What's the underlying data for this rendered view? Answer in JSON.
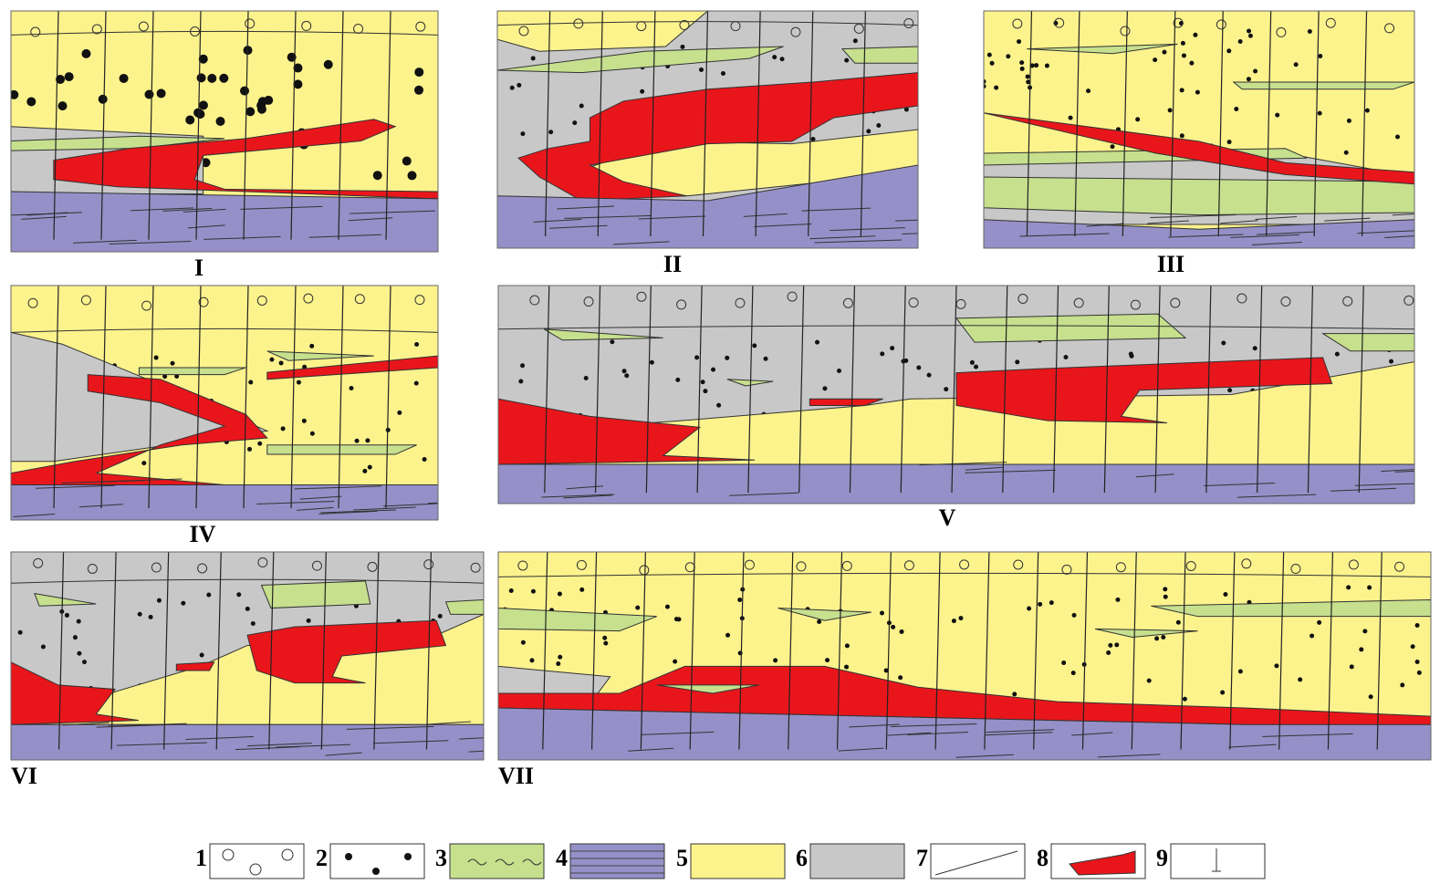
{
  "panels": [
    {
      "label": "I"
    },
    {
      "label": "II"
    },
    {
      "label": "III"
    },
    {
      "label": "IV"
    },
    {
      "label": "V"
    },
    {
      "label": "VI"
    },
    {
      "label": "VII"
    }
  ],
  "legend": [
    {
      "label": "1"
    },
    {
      "label": "2"
    },
    {
      "label": "3"
    },
    {
      "label": "4"
    },
    {
      "label": "5"
    },
    {
      "label": "6"
    },
    {
      "label": "7"
    },
    {
      "label": "8"
    },
    {
      "label": "9"
    }
  ]
}
